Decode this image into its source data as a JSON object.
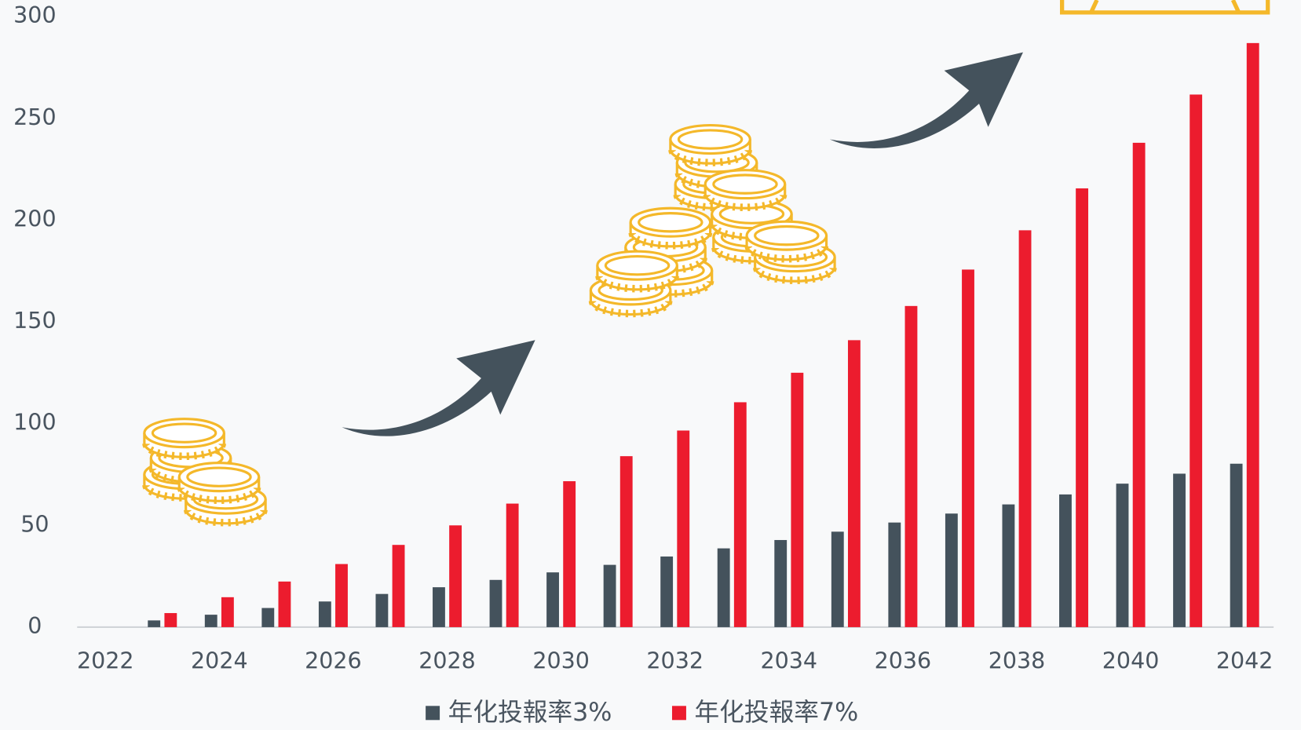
{
  "chart_data": {
    "type": "bar",
    "categories": [
      "2022",
      null,
      "2024",
      null,
      "2026",
      null,
      "2028",
      null,
      "2030",
      null,
      "2032",
      null,
      "2034",
      null,
      "2036",
      null,
      "2038",
      null,
      "2040",
      null,
      "2042"
    ],
    "series": [
      {
        "name": "年化投報率3%",
        "color": "#44525c",
        "values": [
          0,
          3.3,
          6.1,
          9.4,
          12.6,
          16.3,
          19.6,
          23.2,
          26.9,
          30.6,
          34.7,
          38.7,
          42.8,
          46.9,
          51.4,
          55.8,
          60.3,
          65.2,
          70.5,
          75.4,
          80.3
        ]
      },
      {
        "name": "年化投報率7%",
        "color": "#ec1c2e",
        "values": [
          0,
          6.9,
          14.7,
          22.4,
          31,
          40.4,
          50,
          60.7,
          71.7,
          84,
          96.6,
          110.5,
          125,
          141,
          157.8,
          175.7,
          195,
          215.6,
          238,
          261.7,
          287
        ]
      }
    ],
    "ylim": [
      0,
      300
    ],
    "yticks": [
      0,
      50,
      100,
      150,
      200,
      250,
      300
    ],
    "grid": false
  }
}
